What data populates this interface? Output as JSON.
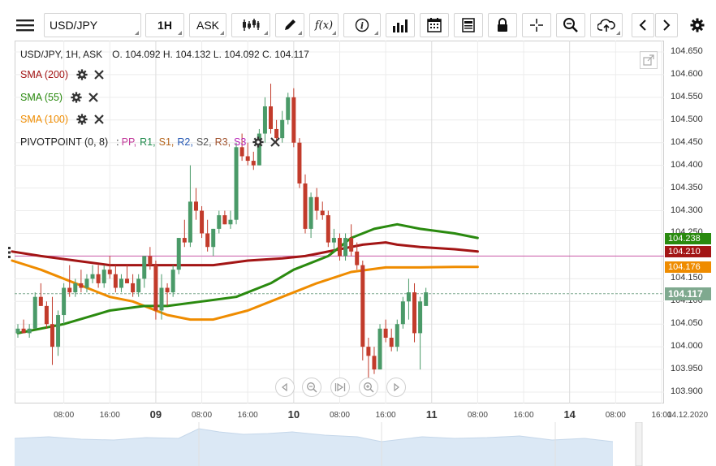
{
  "toolbar": {
    "symbol": "USD/JPY",
    "timeframe": "1H",
    "price_type": "ASK"
  },
  "header": {
    "title": "USD/JPY, 1H, ASK",
    "ohlc": "O. 104.092 H. 104.132 L. 104.092 C. 104.117"
  },
  "indicators": [
    {
      "label": "SMA (200)",
      "color": "#a31515"
    },
    {
      "label": "SMA (55)",
      "color": "#2a8a0f"
    },
    {
      "label": "SMA (100)",
      "color": "#ef8c00"
    }
  ],
  "pivot": {
    "label": "PIVOTPOINT (0, 8)",
    "sep": ":",
    "items": [
      {
        "text": "PP,",
        "color": "#c2399a"
      },
      {
        "text": "R1,",
        "color": "#1f8a4c"
      },
      {
        "text": "S1,",
        "color": "#b5651d"
      },
      {
        "text": "R2,",
        "color": "#2457b3"
      },
      {
        "text": "S2,",
        "color": "#555555"
      },
      {
        "text": "R3,",
        "color": "#a0522d"
      },
      {
        "text": "S3",
        "color": "#b622b6"
      }
    ]
  },
  "price_tags": [
    {
      "value": "104.238",
      "color": "#2a8a0f"
    },
    {
      "value": "104.210",
      "color": "#a31515"
    },
    {
      "value": "104.176",
      "color": "#ef8c00"
    },
    {
      "value": "104.117",
      "color": "#7fa98f"
    }
  ],
  "date_stamp": "14.12.2020",
  "chart_data": {
    "type": "candlestick",
    "yticks": [
      "103.900",
      "103.950",
      "104.000",
      "104.050",
      "104.100",
      "104.150",
      "104.200",
      "104.250",
      "104.300",
      "104.350",
      "104.400",
      "104.450",
      "104.500",
      "104.550",
      "104.600",
      "104.650"
    ],
    "ylim": [
      103.875,
      104.675
    ],
    "x_labels": [
      {
        "text": "08:00",
        "h": 8
      },
      {
        "text": "16:00",
        "h": 16
      },
      {
        "text": "09",
        "h": 24,
        "major": true
      },
      {
        "text": "08:00",
        "h": 32
      },
      {
        "text": "16:00",
        "h": 40
      },
      {
        "text": "10",
        "h": 48,
        "major": true
      },
      {
        "text": "08:00",
        "h": 56
      },
      {
        "text": "16:00",
        "h": 64
      },
      {
        "text": "11",
        "h": 72,
        "major": true
      },
      {
        "text": "08:00",
        "h": 80
      },
      {
        "text": "16:00",
        "h": 88
      },
      {
        "text": "14",
        "h": 96,
        "major": true
      },
      {
        "text": "08:00",
        "h": 104
      },
      {
        "text": "16:00",
        "h": 112
      }
    ],
    "pivot_level": 104.2,
    "last_price": 104.117,
    "ohlc": [
      [
        104.03,
        104.05,
        104.02,
        104.04
      ],
      [
        104.04,
        104.06,
        104.03,
        104.03
      ],
      [
        104.03,
        104.05,
        104.02,
        104.04
      ],
      [
        104.04,
        104.12,
        104.04,
        104.11
      ],
      [
        104.11,
        104.14,
        104.09,
        104.09
      ],
      [
        104.09,
        104.1,
        104.04,
        104.05
      ],
      [
        104.05,
        104.11,
        103.96,
        104.0
      ],
      [
        104.0,
        104.08,
        103.98,
        104.07
      ],
      [
        104.07,
        104.14,
        104.05,
        104.13
      ],
      [
        104.13,
        104.18,
        104.11,
        104.12
      ],
      [
        104.12,
        104.15,
        104.11,
        104.14
      ],
      [
        104.14,
        104.17,
        104.12,
        104.13
      ],
      [
        104.13,
        104.16,
        104.12,
        104.15
      ],
      [
        104.15,
        104.18,
        104.14,
        104.16
      ],
      [
        104.16,
        104.18,
        104.13,
        104.14
      ],
      [
        104.14,
        104.18,
        104.13,
        104.17
      ],
      [
        104.17,
        104.2,
        104.15,
        104.16
      ],
      [
        104.16,
        104.18,
        104.12,
        104.13
      ],
      [
        104.13,
        104.16,
        104.12,
        104.15
      ],
      [
        104.15,
        104.18,
        104.14,
        104.14
      ],
      [
        104.14,
        104.16,
        104.11,
        104.12
      ],
      [
        104.12,
        104.16,
        104.11,
        104.15
      ],
      [
        104.15,
        104.2,
        104.13,
        104.2
      ],
      [
        104.2,
        104.22,
        104.17,
        104.18
      ],
      [
        104.18,
        104.19,
        104.06,
        104.08
      ],
      [
        104.08,
        104.16,
        104.06,
        104.13
      ],
      [
        104.13,
        104.14,
        104.09,
        104.12
      ],
      [
        104.12,
        104.18,
        104.11,
        104.17
      ],
      [
        104.17,
        104.24,
        104.16,
        104.24
      ],
      [
        104.24,
        104.28,
        104.22,
        104.23
      ],
      [
        104.23,
        104.4,
        104.22,
        104.32
      ],
      [
        104.32,
        104.35,
        104.28,
        104.3
      ],
      [
        104.3,
        104.31,
        104.24,
        104.25
      ],
      [
        104.25,
        104.28,
        104.21,
        104.22
      ],
      [
        104.22,
        104.26,
        104.2,
        104.26
      ],
      [
        104.26,
        104.3,
        104.25,
        104.29
      ],
      [
        104.29,
        104.3,
        104.27,
        104.27
      ],
      [
        104.27,
        104.3,
        104.26,
        104.28
      ],
      [
        104.28,
        104.45,
        104.27,
        104.44
      ],
      [
        104.44,
        104.47,
        104.41,
        104.42
      ],
      [
        104.42,
        104.45,
        104.4,
        104.41
      ],
      [
        104.41,
        104.43,
        104.39,
        104.4
      ],
      [
        104.4,
        104.48,
        104.4,
        104.47
      ],
      [
        104.47,
        104.55,
        104.45,
        104.53
      ],
      [
        104.53,
        104.58,
        104.47,
        104.48
      ],
      [
        104.48,
        104.5,
        104.45,
        104.46
      ],
      [
        104.46,
        104.52,
        104.45,
        104.5
      ],
      [
        104.5,
        104.56,
        104.49,
        104.55
      ],
      [
        104.55,
        104.57,
        104.44,
        104.45
      ],
      [
        104.45,
        104.46,
        104.35,
        104.36
      ],
      [
        104.36,
        104.38,
        104.25,
        104.26
      ],
      [
        104.26,
        104.34,
        104.24,
        104.33
      ],
      [
        104.33,
        104.35,
        104.28,
        104.3
      ],
      [
        104.3,
        104.32,
        104.28,
        104.29
      ],
      [
        104.29,
        104.3,
        104.22,
        104.23
      ],
      [
        104.23,
        104.26,
        104.21,
        104.24
      ],
      [
        104.24,
        104.25,
        104.19,
        104.2
      ],
      [
        104.2,
        104.25,
        104.19,
        104.24
      ],
      [
        104.24,
        104.27,
        104.2,
        104.21
      ],
      [
        104.21,
        104.23,
        104.17,
        104.18
      ],
      [
        104.18,
        104.19,
        103.97,
        104.0
      ],
      [
        104.0,
        104.02,
        103.93,
        103.98
      ],
      [
        103.98,
        104.0,
        103.94,
        103.95
      ],
      [
        103.95,
        104.05,
        103.95,
        104.04
      ],
      [
        104.04,
        104.06,
        104.01,
        104.02
      ],
      [
        104.02,
        104.04,
        103.99,
        104.0
      ],
      [
        104.0,
        104.06,
        103.99,
        104.05
      ],
      [
        104.05,
        104.11,
        104.04,
        104.1
      ],
      [
        104.1,
        104.15,
        104.06,
        104.12
      ],
      [
        104.12,
        104.14,
        104.01,
        104.03
      ],
      [
        104.03,
        104.11,
        103.95,
        104.1
      ],
      [
        104.09,
        104.13,
        104.09,
        104.12
      ]
    ],
    "sma55": [
      [
        0,
        104.03
      ],
      [
        8,
        104.05
      ],
      [
        16,
        104.08
      ],
      [
        22,
        104.09
      ],
      [
        26,
        104.09
      ],
      [
        32,
        104.1
      ],
      [
        38,
        104.11
      ],
      [
        44,
        104.14
      ],
      [
        48,
        104.17
      ],
      [
        54,
        104.2
      ],
      [
        58,
        104.24
      ],
      [
        62,
        104.26
      ],
      [
        66,
        104.27
      ],
      [
        70,
        104.26
      ],
      [
        76,
        104.25
      ],
      [
        80,
        104.24
      ]
    ],
    "sma200": [
      [
        -1,
        104.21
      ],
      [
        4,
        104.2
      ],
      [
        10,
        104.19
      ],
      [
        16,
        104.18
      ],
      [
        22,
        104.18
      ],
      [
        28,
        104.18
      ],
      [
        34,
        104.18
      ],
      [
        40,
        104.19
      ],
      [
        46,
        104.195
      ],
      [
        50,
        104.2
      ],
      [
        56,
        104.215
      ],
      [
        60,
        104.225
      ],
      [
        64,
        104.23
      ],
      [
        66,
        104.225
      ],
      [
        70,
        104.22
      ],
      [
        76,
        104.215
      ],
      [
        80,
        104.21
      ]
    ],
    "sma100": [
      [
        -1,
        104.19
      ],
      [
        4,
        104.17
      ],
      [
        8,
        104.15
      ],
      [
        12,
        104.13
      ],
      [
        16,
        104.11
      ],
      [
        20,
        104.1
      ],
      [
        26,
        104.07
      ],
      [
        30,
        104.06
      ],
      [
        34,
        104.06
      ],
      [
        40,
        104.08
      ],
      [
        46,
        104.11
      ],
      [
        52,
        104.14
      ],
      [
        58,
        104.165
      ],
      [
        64,
        104.175
      ],
      [
        70,
        104.175
      ],
      [
        76,
        104.176
      ],
      [
        80,
        104.176
      ]
    ]
  }
}
